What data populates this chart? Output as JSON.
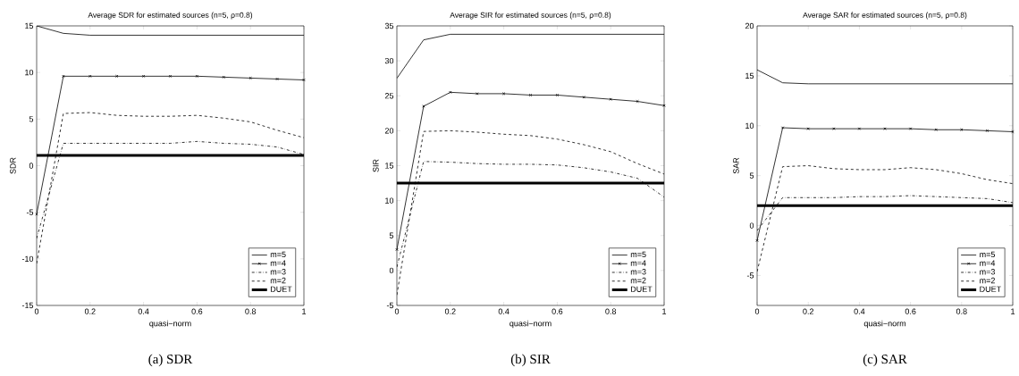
{
  "chart_data": [
    {
      "type": "line",
      "title": "Average SDR for estimated sources (n=5, ρ=0.8)",
      "xlabel": "quasi−norm",
      "ylabel": "SDR",
      "annotations": [
        "(a)  SDR"
      ],
      "x": [
        0,
        0.1,
        0.2,
        0.3,
        0.4,
        0.5,
        0.6,
        0.7,
        0.8,
        0.9,
        1
      ],
      "xlim": [
        0,
        1
      ],
      "ylim": [
        -15,
        15
      ],
      "xticks": [
        0,
        0.2,
        0.4,
        0.6,
        0.8,
        1
      ],
      "yticks": [
        -15,
        -10,
        -5,
        0,
        5,
        10,
        15
      ],
      "grid": false,
      "legend": "bottom right",
      "series": [
        {
          "name": "m=5",
          "color": "#000000",
          "line_style": "solid",
          "marker": "none",
          "values": [
            15,
            14.2,
            14.0,
            14.0,
            14.0,
            14.0,
            14.0,
            14.0,
            14.0,
            14.0,
            14.0
          ]
        },
        {
          "name": "m=4",
          "color": "#000000",
          "line_style": "solid",
          "marker": "cross",
          "values": [
            -5.2,
            9.6,
            9.6,
            9.6,
            9.6,
            9.6,
            9.6,
            9.5,
            9.4,
            9.3,
            9.2
          ]
        },
        {
          "name": "m=3",
          "color": "#000000",
          "line_style": "dashdot",
          "marker": "none",
          "values": [
            -7.8,
            2.4,
            2.4,
            2.4,
            2.4,
            2.4,
            2.6,
            2.4,
            2.3,
            2.0,
            1.2
          ]
        },
        {
          "name": "m=2",
          "color": "#000000",
          "line_style": "dashed",
          "marker": "none",
          "values": [
            -10.5,
            5.6,
            5.7,
            5.4,
            5.3,
            5.3,
            5.4,
            5.1,
            4.7,
            3.8,
            3.0
          ]
        }
      ],
      "ref_lines": [
        {
          "axis": "y",
          "value": 1.1,
          "label": "DUET",
          "color": "#000000",
          "line_style": "solid"
        }
      ]
    },
    {
      "type": "line",
      "title": "Average SIR for estimated sources (n=5, ρ=0.8)",
      "xlabel": "quasi−norm",
      "ylabel": "SIR",
      "annotations": [
        "(b)  SIR"
      ],
      "x": [
        0,
        0.1,
        0.2,
        0.3,
        0.4,
        0.5,
        0.6,
        0.7,
        0.8,
        0.9,
        1
      ],
      "xlim": [
        0,
        1
      ],
      "ylim": [
        -5,
        35
      ],
      "xticks": [
        0,
        0.2,
        0.4,
        0.6,
        0.8,
        1
      ],
      "yticks": [
        -5,
        0,
        5,
        10,
        15,
        20,
        25,
        30,
        35
      ],
      "grid": false,
      "legend": "bottom right",
      "series": [
        {
          "name": "m=5",
          "color": "#000000",
          "line_style": "solid",
          "marker": "none",
          "values": [
            27.5,
            33.0,
            33.8,
            33.8,
            33.8,
            33.8,
            33.8,
            33.8,
            33.8,
            33.8,
            33.8
          ]
        },
        {
          "name": "m=4",
          "color": "#000000",
          "line_style": "solid",
          "marker": "cross",
          "values": [
            3.0,
            23.5,
            25.5,
            25.3,
            25.3,
            25.1,
            25.1,
            24.8,
            24.5,
            24.2,
            23.6
          ]
        },
        {
          "name": "m=3",
          "color": "#000000",
          "line_style": "dashdot",
          "marker": "none",
          "values": [
            0.5,
            15.6,
            15.5,
            15.3,
            15.2,
            15.2,
            15.1,
            14.7,
            14.1,
            13.2,
            10.5
          ]
        },
        {
          "name": "m=2",
          "color": "#000000",
          "line_style": "dashed",
          "marker": "none",
          "values": [
            -3.5,
            19.9,
            20.0,
            19.8,
            19.5,
            19.3,
            18.8,
            18.0,
            17.0,
            15.3,
            13.8
          ]
        }
      ],
      "ref_lines": [
        {
          "axis": "y",
          "value": 12.5,
          "label": "DUET",
          "color": "#000000",
          "line_style": "solid"
        }
      ]
    },
    {
      "type": "line",
      "title": "Average SAR for estimated sources (n=5, ρ=0.8)",
      "xlabel": "quasi−norm",
      "ylabel": "SAR",
      "annotations": [
        "(c)  SAR"
      ],
      "x": [
        0,
        0.1,
        0.2,
        0.3,
        0.4,
        0.5,
        0.6,
        0.7,
        0.8,
        0.9,
        1
      ],
      "xlim": [
        0,
        1
      ],
      "ylim": [
        -8,
        20
      ],
      "xticks": [
        0,
        0.2,
        0.4,
        0.6,
        0.8,
        1
      ],
      "yticks": [
        -5,
        0,
        5,
        10,
        15,
        20
      ],
      "grid": false,
      "legend": "bottom right",
      "series": [
        {
          "name": "m=5",
          "color": "#000000",
          "line_style": "solid",
          "marker": "none",
          "values": [
            15.6,
            14.3,
            14.2,
            14.2,
            14.2,
            14.2,
            14.2,
            14.2,
            14.2,
            14.2,
            14.2
          ]
        },
        {
          "name": "m=4",
          "color": "#000000",
          "line_style": "solid",
          "marker": "cross",
          "values": [
            -1.5,
            9.8,
            9.7,
            9.7,
            9.7,
            9.7,
            9.7,
            9.6,
            9.6,
            9.5,
            9.4
          ]
        },
        {
          "name": "m=3",
          "color": "#000000",
          "line_style": "dashdot",
          "marker": "none",
          "values": [
            -0.5,
            2.8,
            2.8,
            2.8,
            2.9,
            2.9,
            3.0,
            2.9,
            2.8,
            2.7,
            2.3
          ]
        },
        {
          "name": "m=2",
          "color": "#000000",
          "line_style": "dashed",
          "marker": "none",
          "values": [
            -4.6,
            5.9,
            6.0,
            5.7,
            5.6,
            5.6,
            5.8,
            5.6,
            5.2,
            4.6,
            4.2
          ]
        }
      ],
      "ref_lines": [
        {
          "axis": "y",
          "value": 2.0,
          "label": "DUET",
          "color": "#000000",
          "line_style": "solid"
        }
      ]
    }
  ]
}
